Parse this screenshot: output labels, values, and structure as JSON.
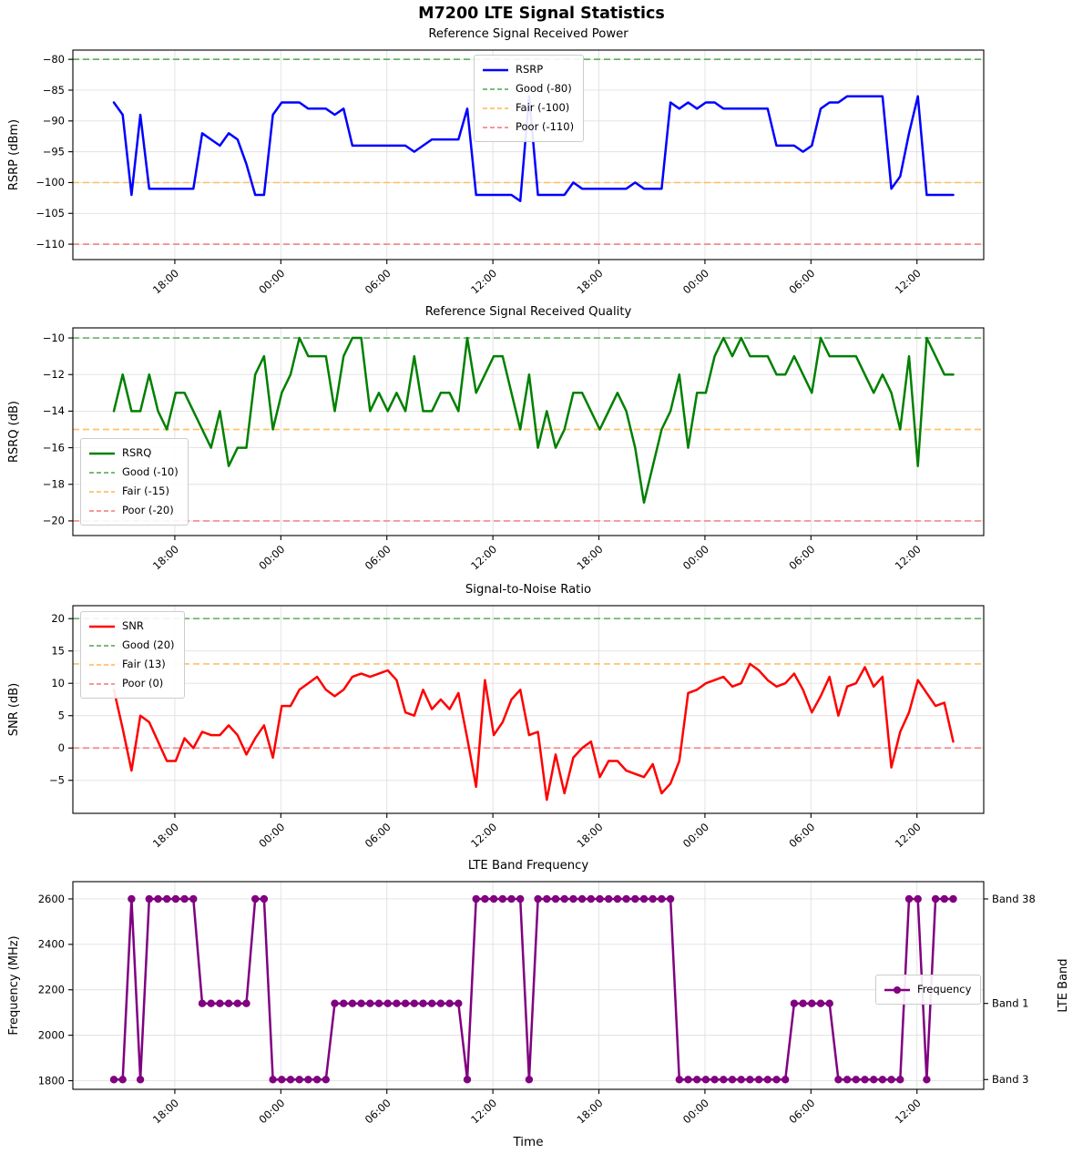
{
  "figure": {
    "title": "M7200 LTE Signal Statistics",
    "xlabel": "Time",
    "background": "#ffffff"
  },
  "x_axis": {
    "tick_labels": [
      "18:00",
      "00:00",
      "06:00",
      "12:00",
      "18:00",
      "00:00",
      "06:00",
      "12:00"
    ],
    "tick_indices": [
      6.9,
      18.9,
      30.9,
      42.9,
      54.9,
      66.9,
      78.9,
      90.9
    ],
    "n_points": 96,
    "grid": true
  },
  "chart_data": [
    {
      "type": "line",
      "title": "Reference Signal Received Power",
      "ylabel": "RSRP (dBm)",
      "line_label": "RSRP",
      "line_color": "#0000ff",
      "legend_position": "upper center",
      "ylim": [
        -112.5,
        -78.5
      ],
      "yticks": [
        -80,
        -85,
        -90,
        -95,
        -100,
        -105,
        -110
      ],
      "thresholds": [
        {
          "label": "Good (-80)",
          "value": -80,
          "color": "#67b168"
        },
        {
          "label": "Fair (-100)",
          "value": -100,
          "color": "#ffc169"
        },
        {
          "label": "Poor (-110)",
          "value": -110,
          "color": "#f58a8a"
        }
      ],
      "values": [
        -87,
        -89,
        -102,
        -89,
        -101,
        -101,
        -101,
        -101,
        -101,
        -101,
        -92,
        -93,
        -94,
        -92,
        -93,
        -97,
        -102,
        -102,
        -89,
        -87,
        -87,
        -87,
        -88,
        -88,
        -88,
        -89,
        -88,
        -94,
        -94,
        -94,
        -94,
        -94,
        -94,
        -94,
        -95,
        -94,
        -93,
        -93,
        -93,
        -93,
        -88,
        -102,
        -102,
        -102,
        -102,
        -102,
        -103,
        -86,
        -102,
        -102,
        -102,
        -102,
        -100,
        -101,
        -101,
        -101,
        -101,
        -101,
        -101,
        -100,
        -101,
        -101,
        -101,
        -87,
        -88,
        -87,
        -88,
        -87,
        -87,
        -88,
        -88,
        -88,
        -88,
        -88,
        -88,
        -94,
        -94,
        -94,
        -95,
        -94,
        -88,
        -87,
        -87,
        -86,
        -86,
        -86,
        -86,
        -86,
        -101,
        -99,
        -92,
        -86,
        -102,
        -102,
        -102,
        -102
      ]
    },
    {
      "type": "line",
      "title": "Reference Signal Received Quality",
      "ylabel": "RSRQ (dB)",
      "line_label": "RSRQ",
      "line_color": "#008000",
      "legend_position": "lower left",
      "ylim": [
        -20.8,
        -9.45
      ],
      "yticks": [
        -10,
        -12,
        -14,
        -16,
        -18,
        -20
      ],
      "thresholds": [
        {
          "label": "Good (-10)",
          "value": -10,
          "color": "#67b168"
        },
        {
          "label": "Fair (-15)",
          "value": -15,
          "color": "#ffc169"
        },
        {
          "label": "Poor (-20)",
          "value": -20,
          "color": "#f58a8a"
        }
      ],
      "values": [
        -14,
        -12,
        -14,
        -14,
        -12,
        -14,
        -15,
        -13,
        -13,
        -14,
        -15,
        -16,
        -14,
        -17,
        -16,
        -16,
        -12,
        -11,
        -15,
        -13,
        -12,
        -10,
        -11,
        -11,
        -11,
        -14,
        -11,
        -10,
        -10,
        -14,
        -13,
        -14,
        -13,
        -14,
        -11,
        -14,
        -14,
        -13,
        -13,
        -14,
        -10,
        -13,
        -12,
        -11,
        -11,
        -13,
        -15,
        -12,
        -16,
        -14,
        -16,
        -15,
        -13,
        -13,
        -14,
        -15,
        -14,
        -13,
        -14,
        -16,
        -19,
        -17,
        -15,
        -14,
        -12,
        -16,
        -13,
        -13,
        -11,
        -10,
        -11,
        -10,
        -11,
        -11,
        -11,
        -12,
        -12,
        -11,
        -12,
        -13,
        -10,
        -11,
        -11,
        -11,
        -11,
        -12,
        -13,
        -12,
        -13,
        -15,
        -11,
        -17,
        -10,
        -11,
        -12,
        -12
      ]
    },
    {
      "type": "line",
      "title": "Signal-to-Noise Ratio",
      "ylabel": "SNR (dB)",
      "line_label": "SNR",
      "line_color": "#ff0000",
      "legend_position": "upper left",
      "ylim": [
        -10.1,
        22
      ],
      "yticks": [
        20,
        15,
        10,
        5,
        0,
        -5
      ],
      "thresholds": [
        {
          "label": "Good (20)",
          "value": 20,
          "color": "#67b168"
        },
        {
          "label": "Fair (13)",
          "value": 13,
          "color": "#ffc169"
        },
        {
          "label": "Poor (0)",
          "value": 0,
          "color": "#f58a8a"
        }
      ],
      "values": [
        9,
        3,
        -3.5,
        5,
        4,
        1,
        -2,
        -2,
        1.5,
        0,
        2.5,
        2,
        2,
        3.5,
        2,
        -1,
        1.5,
        3.5,
        -1.5,
        6.5,
        6.5,
        9,
        10,
        11,
        9,
        8,
        9,
        11,
        11.5,
        11,
        11.5,
        12,
        10.5,
        5.5,
        5,
        9,
        6,
        7.5,
        6,
        8.5,
        1.5,
        -6,
        10.5,
        2,
        4,
        7.5,
        9,
        2,
        2.5,
        -8,
        -1,
        -7,
        -1.5,
        0,
        1,
        -4.5,
        -2,
        -2,
        -3.5,
        -4,
        -4.5,
        -2.5,
        -7,
        -5.5,
        -2,
        8.5,
        9,
        10,
        10.5,
        11,
        9.5,
        10,
        13,
        12,
        10.5,
        9.5,
        10,
        11.5,
        9,
        5.5,
        8,
        11,
        5,
        9.5,
        10,
        12.5,
        9.5,
        11,
        -3,
        2.5,
        5.5,
        10.5,
        8.5,
        6.5,
        7,
        1
      ]
    },
    {
      "type": "line",
      "title": "LTE Band Frequency",
      "ylabel": "Frequency (MHz)",
      "line_label": "Frequency",
      "line_color": "#800080",
      "marker": true,
      "legend_position": "center right",
      "ylim": [
        1762,
        2676
      ],
      "yticks": [
        2600,
        2400,
        2200,
        2000,
        1800
      ],
      "right_axis": {
        "label": "LTE Band",
        "ticks": [
          {
            "label": "Band 38",
            "value": 2600
          },
          {
            "label": "Band 1",
            "value": 2140
          },
          {
            "label": "Band 3",
            "value": 1805
          }
        ]
      },
      "band_map": {
        "1805": "Band 3",
        "2140": "Band 1",
        "2600": "Band 38"
      },
      "values": [
        1805,
        1805,
        2600,
        1805,
        2600,
        2600,
        2600,
        2600,
        2600,
        2600,
        2140,
        2140,
        2140,
        2140,
        2140,
        2140,
        2600,
        2600,
        1805,
        1805,
        1805,
        1805,
        1805,
        1805,
        1805,
        2140,
        2140,
        2140,
        2140,
        2140,
        2140,
        2140,
        2140,
        2140,
        2140,
        2140,
        2140,
        2140,
        2140,
        2140,
        1805,
        2600,
        2600,
        2600,
        2600,
        2600,
        2600,
        1805,
        2600,
        2600,
        2600,
        2600,
        2600,
        2600,
        2600,
        2600,
        2600,
        2600,
        2600,
        2600,
        2600,
        2600,
        2600,
        2600,
        1805,
        1805,
        1805,
        1805,
        1805,
        1805,
        1805,
        1805,
        1805,
        1805,
        1805,
        1805,
        1805,
        2140,
        2140,
        2140,
        2140,
        2140,
        1805,
        1805,
        1805,
        1805,
        1805,
        1805,
        1805,
        1805,
        2600,
        2600,
        1805,
        2600,
        2600,
        2600
      ]
    }
  ]
}
